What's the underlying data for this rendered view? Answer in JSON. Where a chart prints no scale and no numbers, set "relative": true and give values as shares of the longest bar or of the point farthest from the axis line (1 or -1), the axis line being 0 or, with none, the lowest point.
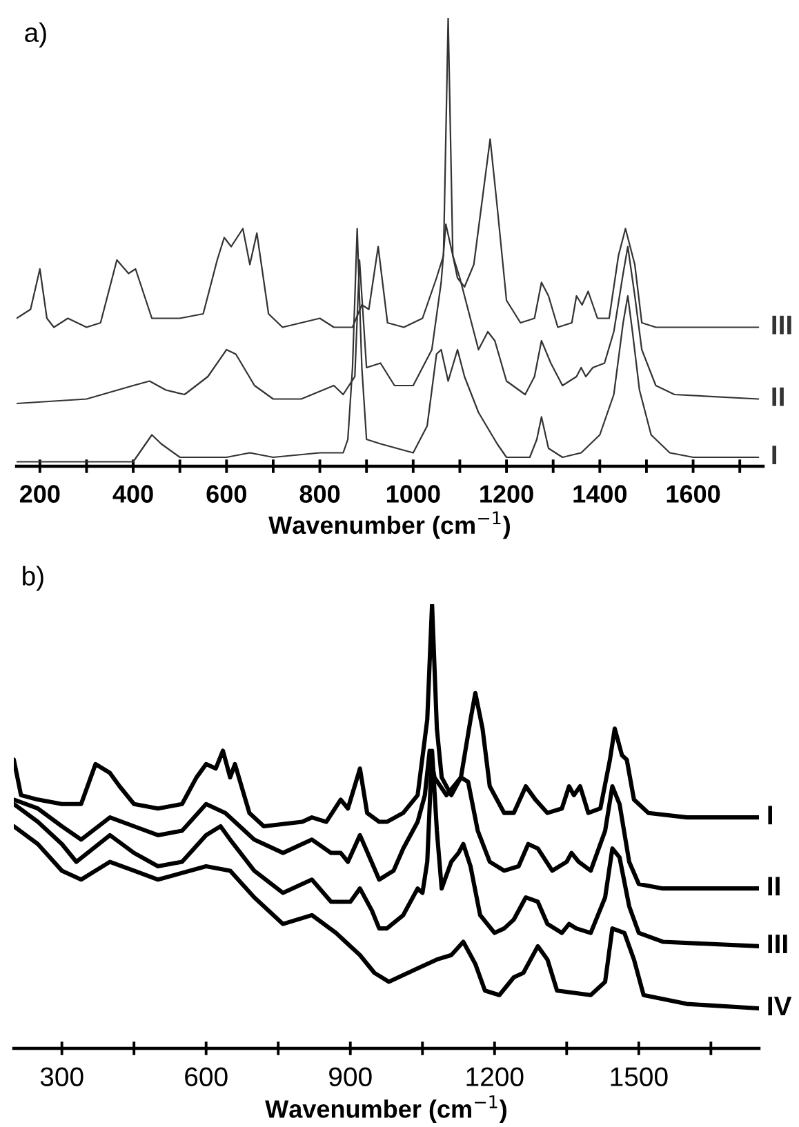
{
  "chart_data": [
    {
      "type": "line",
      "title": "a)",
      "xlabel": "Wavenumber (cm$^{−1}$)",
      "relative": true,
      "xlim": [
        150,
        1750
      ],
      "xticks": [
        200,
        {
          "value": 300,
          "label": null
        },
        400,
        {
          "value": 500,
          "label": null
        },
        600,
        {
          "value": 700,
          "label": null
        },
        800,
        {
          "value": 900,
          "label": null
        },
        1000,
        {
          "value": 1100,
          "label": null
        },
        1200,
        {
          "value": 1300,
          "label": null
        },
        1400,
        {
          "value": 1500,
          "label": null
        },
        1600,
        {
          "value": 1700,
          "label": null
        }
      ],
      "series": [
        {
          "name": "III",
          "color": "#333333",
          "x": [
            150,
            180,
            200,
            215,
            230,
            260,
            300,
            330,
            365,
            390,
            405,
            440,
            500,
            550,
            580,
            595,
            610,
            635,
            650,
            665,
            690,
            720,
            800,
            830,
            870,
            890,
            905,
            925,
            945,
            980,
            1020,
            1050,
            1065,
            1075,
            1085,
            1095,
            1110,
            1130,
            1150,
            1165,
            1180,
            1200,
            1230,
            1260,
            1275,
            1290,
            1310,
            1340,
            1350,
            1362,
            1375,
            1395,
            1420,
            1440,
            1455,
            1465,
            1475,
            1490,
            1520,
            1600,
            1740
          ],
          "values": [
            0.33,
            0.35,
            0.44,
            0.33,
            0.31,
            0.33,
            0.31,
            0.32,
            0.46,
            0.43,
            0.44,
            0.33,
            0.33,
            0.34,
            0.46,
            0.51,
            0.49,
            0.53,
            0.45,
            0.52,
            0.34,
            0.31,
            0.33,
            0.31,
            0.31,
            0.36,
            0.35,
            0.49,
            0.32,
            0.31,
            0.33,
            0.42,
            0.47,
            1.0,
            0.47,
            0.42,
            0.4,
            0.45,
            0.61,
            0.73,
            0.58,
            0.37,
            0.32,
            0.33,
            0.41,
            0.38,
            0.31,
            0.32,
            0.38,
            0.36,
            0.39,
            0.33,
            0.33,
            0.47,
            0.53,
            0.49,
            0.45,
            0.32,
            0.31,
            0.31,
            0.31
          ]
        },
        {
          "name": "II",
          "color": "#333333",
          "x": [
            150,
            300,
            400,
            435,
            470,
            510,
            560,
            600,
            620,
            660,
            700,
            760,
            830,
            850,
            875,
            885,
            900,
            930,
            960,
            1000,
            1040,
            1060,
            1070,
            1085,
            1100,
            1120,
            1140,
            1160,
            1175,
            1200,
            1240,
            1260,
            1275,
            1295,
            1320,
            1350,
            1360,
            1370,
            1385,
            1410,
            1430,
            1450,
            1460,
            1475,
            1490,
            1520,
            1560,
            1740
          ],
          "values": [
            0.14,
            0.15,
            0.18,
            0.19,
            0.17,
            0.16,
            0.2,
            0.26,
            0.25,
            0.18,
            0.15,
            0.15,
            0.18,
            0.16,
            0.2,
            0.46,
            0.22,
            0.23,
            0.18,
            0.18,
            0.26,
            0.41,
            0.54,
            0.47,
            0.42,
            0.34,
            0.26,
            0.3,
            0.28,
            0.19,
            0.16,
            0.2,
            0.28,
            0.23,
            0.18,
            0.2,
            0.22,
            0.2,
            0.22,
            0.23,
            0.3,
            0.43,
            0.49,
            0.38,
            0.26,
            0.18,
            0.16,
            0.15
          ]
        },
        {
          "name": "I",
          "color": "#333333",
          "x": [
            150,
            400,
            420,
            440,
            460,
            500,
            600,
            650,
            700,
            800,
            850,
            860,
            870,
            880,
            890,
            900,
            930,
            1000,
            1030,
            1050,
            1060,
            1075,
            1095,
            1110,
            1140,
            1180,
            1200,
            1250,
            1265,
            1275,
            1290,
            1320,
            1360,
            1400,
            1430,
            1450,
            1460,
            1470,
            1485,
            1510,
            1550,
            1600,
            1740
          ],
          "values": [
            0.01,
            0.01,
            0.04,
            0.07,
            0.05,
            0.02,
            0.02,
            0.03,
            0.02,
            0.03,
            0.03,
            0.06,
            0.22,
            0.53,
            0.22,
            0.06,
            0.05,
            0.03,
            0.09,
            0.25,
            0.26,
            0.19,
            0.26,
            0.2,
            0.12,
            0.05,
            0.02,
            0.02,
            0.06,
            0.11,
            0.04,
            0.02,
            0.03,
            0.07,
            0.16,
            0.32,
            0.38,
            0.3,
            0.17,
            0.07,
            0.03,
            0.02,
            0.02
          ]
        }
      ]
    },
    {
      "type": "line",
      "title": "b)",
      "xlabel": "Wavenumber (cm$^{−1}$)",
      "relative": true,
      "xlim": [
        200,
        1750
      ],
      "xticks": [
        300,
        {
          "value": 450,
          "label": null
        },
        600,
        {
          "value": 750,
          "label": null
        },
        900,
        {
          "value": 1050,
          "label": null
        },
        1200,
        {
          "value": 1350,
          "label": null
        },
        1500,
        {
          "value": 1650,
          "label": null
        }
      ],
      "series": [
        {
          "name": "I",
          "color": "#000000",
          "x": [
            200,
            215,
            250,
            300,
            340,
            370,
            400,
            420,
            450,
            500,
            550,
            580,
            600,
            620,
            635,
            650,
            660,
            690,
            720,
            800,
            820,
            850,
            880,
            895,
            920,
            935,
            960,
            976,
            1010,
            1040,
            1060,
            1070,
            1080,
            1090,
            1110,
            1130,
            1150,
            1160,
            1175,
            1190,
            1220,
            1240,
            1265,
            1285,
            1310,
            1340,
            1355,
            1365,
            1378,
            1395,
            1420,
            1440,
            1450,
            1465,
            1475,
            1490,
            1520,
            1600,
            1750
          ],
          "values": [
            0.65,
            0.57,
            0.56,
            0.55,
            0.55,
            0.64,
            0.62,
            0.59,
            0.55,
            0.54,
            0.55,
            0.61,
            0.64,
            0.63,
            0.67,
            0.61,
            0.64,
            0.53,
            0.5,
            0.51,
            0.52,
            0.51,
            0.56,
            0.54,
            0.63,
            0.53,
            0.51,
            0.51,
            0.53,
            0.57,
            0.74,
            1.0,
            0.72,
            0.61,
            0.57,
            0.61,
            0.74,
            0.8,
            0.72,
            0.59,
            0.53,
            0.53,
            0.59,
            0.56,
            0.53,
            0.54,
            0.59,
            0.57,
            0.59,
            0.53,
            0.54,
            0.65,
            0.72,
            0.66,
            0.65,
            0.56,
            0.53,
            0.52,
            0.52
          ]
        },
        {
          "name": "II",
          "color": "#000000",
          "x": [
            200,
            250,
            300,
            340,
            400,
            450,
            500,
            550,
            600,
            640,
            700,
            760,
            820,
            860,
            880,
            895,
            920,
            940,
            960,
            990,
            1010,
            1040,
            1055,
            1065,
            1075,
            1100,
            1130,
            1145,
            1165,
            1190,
            1220,
            1250,
            1270,
            1290,
            1320,
            1350,
            1360,
            1375,
            1400,
            1430,
            1445,
            1460,
            1480,
            1500,
            1550,
            1750
          ],
          "values": [
            0.56,
            0.54,
            0.5,
            0.47,
            0.52,
            0.5,
            0.48,
            0.49,
            0.55,
            0.53,
            0.47,
            0.44,
            0.47,
            0.44,
            0.44,
            0.42,
            0.48,
            0.43,
            0.38,
            0.4,
            0.45,
            0.51,
            0.57,
            0.67,
            0.61,
            0.57,
            0.61,
            0.6,
            0.49,
            0.42,
            0.4,
            0.41,
            0.46,
            0.45,
            0.4,
            0.42,
            0.44,
            0.42,
            0.4,
            0.49,
            0.59,
            0.55,
            0.42,
            0.37,
            0.36,
            0.36
          ]
        },
        {
          "name": "III",
          "color": "#000000",
          "x": [
            200,
            250,
            300,
            330,
            400,
            450,
            500,
            550,
            600,
            630,
            650,
            700,
            760,
            820,
            860,
            900,
            920,
            945,
            960,
            976,
            1010,
            1040,
            1050,
            1060,
            1070,
            1080,
            1090,
            1110,
            1125,
            1135,
            1150,
            1170,
            1200,
            1220,
            1240,
            1265,
            1290,
            1310,
            1340,
            1355,
            1370,
            1400,
            1430,
            1445,
            1460,
            1480,
            1500,
            1550,
            1750
          ],
          "values": [
            0.55,
            0.51,
            0.46,
            0.42,
            0.48,
            0.44,
            0.41,
            0.42,
            0.48,
            0.5,
            0.47,
            0.4,
            0.35,
            0.38,
            0.33,
            0.33,
            0.36,
            0.31,
            0.27,
            0.27,
            0.3,
            0.36,
            0.35,
            0.42,
            0.67,
            0.49,
            0.36,
            0.42,
            0.44,
            0.46,
            0.41,
            0.3,
            0.26,
            0.27,
            0.29,
            0.34,
            0.33,
            0.28,
            0.26,
            0.28,
            0.27,
            0.26,
            0.34,
            0.45,
            0.43,
            0.32,
            0.26,
            0.24,
            0.23
          ]
        },
        {
          "name": "IV",
          "color": "#000000",
          "x": [
            200,
            250,
            300,
            340,
            400,
            450,
            500,
            600,
            650,
            700,
            760,
            820,
            870,
            920,
            950,
            980,
            1040,
            1080,
            1110,
            1135,
            1160,
            1180,
            1210,
            1240,
            1260,
            1290,
            1310,
            1330,
            1400,
            1430,
            1445,
            1470,
            1490,
            1510,
            1600,
            1750
          ],
          "values": [
            0.5,
            0.46,
            0.4,
            0.38,
            0.42,
            0.4,
            0.38,
            0.41,
            0.4,
            0.34,
            0.28,
            0.3,
            0.26,
            0.21,
            0.17,
            0.15,
            0.18,
            0.2,
            0.21,
            0.24,
            0.19,
            0.13,
            0.12,
            0.16,
            0.17,
            0.23,
            0.2,
            0.13,
            0.12,
            0.15,
            0.27,
            0.26,
            0.2,
            0.12,
            0.1,
            0.09
          ]
        }
      ]
    }
  ]
}
